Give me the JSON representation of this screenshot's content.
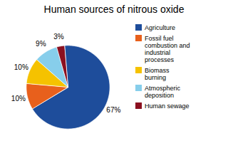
{
  "chart_data": {
    "type": "pie",
    "title": "Human sources of nitrous oxide",
    "categories": [
      "Agriculture",
      "Fossil fuel\ncombustion and\nindustrial\nprocesses",
      "Biomass\nburning",
      "Atmospheric\ndeposition",
      "Human sewage"
    ],
    "values": [
      67,
      10,
      10,
      9,
      3
    ],
    "value_labels": [
      "67%",
      "10%",
      "10%",
      "9%",
      "3%"
    ],
    "colors": [
      "#1e4d9b",
      "#e8601c",
      "#f5c200",
      "#87ceeb",
      "#8b1020"
    ],
    "data_labels": true,
    "legend": "right"
  }
}
